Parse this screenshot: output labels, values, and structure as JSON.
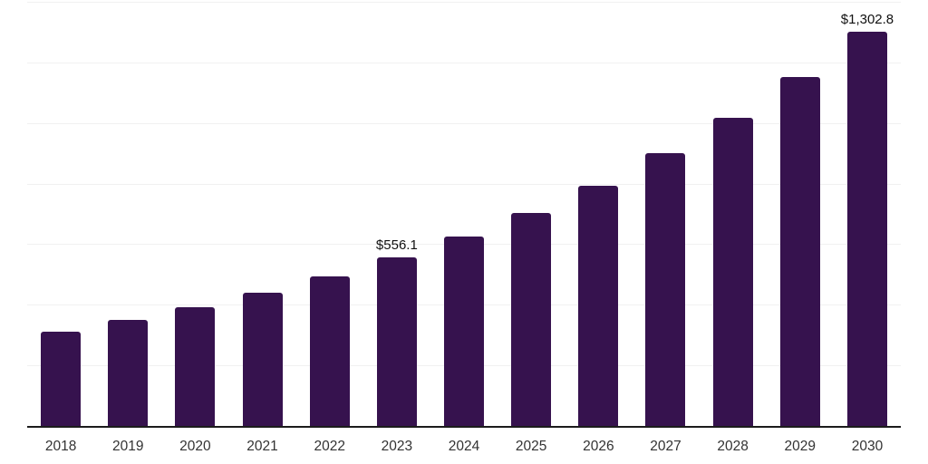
{
  "chart_data": {
    "type": "bar",
    "categories": [
      "2018",
      "2019",
      "2020",
      "2021",
      "2022",
      "2023",
      "2024",
      "2025",
      "2026",
      "2027",
      "2028",
      "2029",
      "2030"
    ],
    "values": [
      312,
      350,
      393,
      441,
      495,
      556.1,
      626,
      704,
      794,
      899,
      1017,
      1153,
      1302.8
    ],
    "value_labels": [
      "",
      "",
      "",
      "",
      "",
      "$556.1",
      "",
      "",
      "",
      "",
      "",
      "",
      "$1,302.8"
    ],
    "labeled_points": [
      {
        "category": "2023",
        "label": "$556.1",
        "value": 556.1
      },
      {
        "category": "2030",
        "label": "$1,302.8",
        "value": 1302.8
      }
    ],
    "xlabel": "",
    "ylabel": "",
    "ylim": [
      0,
      1400
    ],
    "gridline_step": 200,
    "grid": true,
    "legend": "none",
    "colors": {
      "bar": "#36124e",
      "gridline": "#f1f1f1",
      "axis_line": "#1c1c1c",
      "value_label_text": "#111111",
      "axis_label_text": "#333333"
    }
  }
}
